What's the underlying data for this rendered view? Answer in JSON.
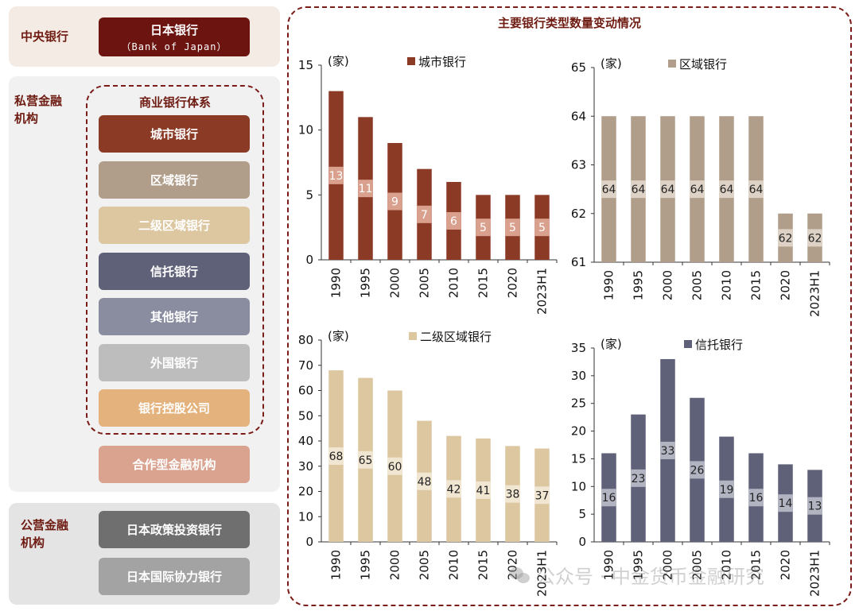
{
  "left_panel": {
    "central": {
      "label": "中央银行",
      "box": {
        "title": "日本银行",
        "subtitle": "（Bank of Japan）",
        "color": "#6b1410"
      }
    },
    "private": {
      "label": "私营金融机构",
      "group_title": "商业银行体系",
      "boxes": [
        {
          "title": "城市银行",
          "color": "#8b3a25"
        },
        {
          "title": "区域银行",
          "color": "#b09e8a"
        },
        {
          "title": "二级区域银行",
          "color": "#dcc7a0"
        },
        {
          "title": "信托银行",
          "color": "#5f6178"
        },
        {
          "title": "其他银行",
          "color": "#8a8da0"
        },
        {
          "title": "外国银行",
          "color": "#bdbdbd"
        },
        {
          "title": "银行控股公司",
          "color": "#e4b27c"
        }
      ],
      "extra_box": {
        "title": "合作型金融机构",
        "color": "#d9a390"
      }
    },
    "public": {
      "label": "公营金融机构",
      "boxes": [
        {
          "title": "日本政策投资银行",
          "color": "#6f6f6f"
        },
        {
          "title": "日本国际协力银行",
          "color": "#a3a3a3"
        }
      ]
    }
  },
  "charts_title": "主要银行类型数量变动情况",
  "chart_data": [
    {
      "type": "bar",
      "unit": "(家)",
      "legend": "城市银行",
      "color": "#8b3a25",
      "label_bg": "#d9a08e",
      "categories": [
        "1990",
        "1995",
        "2000",
        "2005",
        "2010",
        "2015",
        "2020",
        "2023H1"
      ],
      "values": [
        13,
        11,
        9,
        7,
        6,
        5,
        5,
        5
      ],
      "ylim": [
        0,
        15
      ],
      "yticks": [
        0,
        5,
        10,
        15
      ]
    },
    {
      "type": "bar",
      "unit": "(家)",
      "legend": "区域银行",
      "color": "#b09e8a",
      "label_bg": "#ddd2c5",
      "categories": [
        "1990",
        "1995",
        "2000",
        "2005",
        "2010",
        "2015",
        "2020",
        "2023H1"
      ],
      "values": [
        64,
        64,
        64,
        64,
        64,
        64,
        62,
        62
      ],
      "ylim": [
        61,
        65
      ],
      "yticks": [
        61,
        62,
        63,
        64,
        65
      ]
    },
    {
      "type": "bar",
      "unit": "(家)",
      "legend": "二级区域银行",
      "color": "#dcc7a0",
      "label_bg": "#f1e6d2",
      "categories": [
        "1990",
        "1995",
        "2000",
        "2005",
        "2010",
        "2015",
        "2020",
        "2023H1"
      ],
      "values": [
        68,
        65,
        60,
        48,
        42,
        41,
        38,
        37
      ],
      "ylim": [
        0,
        80
      ],
      "yticks": [
        0,
        10,
        20,
        30,
        40,
        50,
        60,
        70,
        80
      ]
    },
    {
      "type": "bar",
      "unit": "(家)",
      "legend": "信托银行",
      "color": "#5f6178",
      "label_bg": "#b2b4c2",
      "categories": [
        "1990",
        "1995",
        "2000",
        "2005",
        "2010",
        "2015",
        "2020",
        "2023H1"
      ],
      "values": [
        16,
        23,
        33,
        26,
        19,
        16,
        14,
        13
      ],
      "ylim": [
        0,
        35
      ],
      "yticks": [
        0,
        5,
        10,
        15,
        20,
        25,
        30,
        35
      ]
    }
  ],
  "watermark": "公众号 · 中金货币金融研究"
}
